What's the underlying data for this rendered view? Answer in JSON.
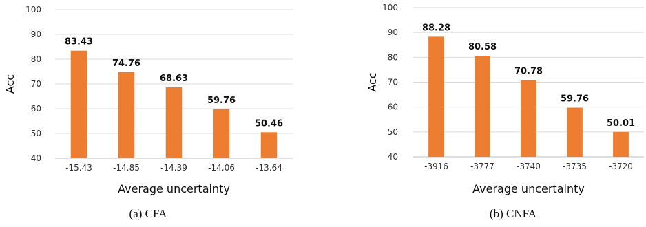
{
  "colors": {
    "bar": "#ED7D31",
    "grid": "#D9D9D9"
  },
  "chart_data": [
    {
      "type": "bar",
      "caption": "(a) CFA",
      "categories": [
        "-15.43",
        "-14.85",
        "-14.39",
        "-14.06",
        "-13.64"
      ],
      "values": [
        83.43,
        74.76,
        68.63,
        59.76,
        50.46
      ],
      "data_labels": [
        "83.43",
        "74.76",
        "68.63",
        "59.76",
        "50.46"
      ],
      "xlabel": "Average uncertainty",
      "ylabel": "Acc",
      "ylim": [
        40,
        100
      ],
      "yticks": [
        "40",
        "50",
        "60",
        "70",
        "80",
        "90",
        "100"
      ],
      "grid": true
    },
    {
      "type": "bar",
      "caption": "(b) CNFA",
      "categories": [
        "-3916",
        "-3777",
        "-3740",
        "-3735",
        "-3720"
      ],
      "values": [
        88.28,
        80.58,
        70.78,
        59.76,
        50.01
      ],
      "data_labels": [
        "88.28",
        "80.58",
        "70.78",
        "59.76",
        "50.01"
      ],
      "xlabel": "Average uncertainty",
      "ylabel": "Acc",
      "ylim": [
        40,
        100
      ],
      "yticks": [
        "40",
        "50",
        "60",
        "70",
        "80",
        "90",
        "100"
      ],
      "grid": true
    }
  ]
}
